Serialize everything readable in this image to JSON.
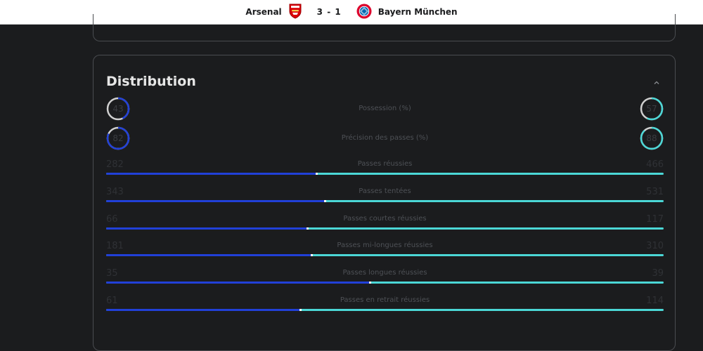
{
  "header": {
    "home_team": "Arsenal",
    "score": "3 - 1",
    "away_team": "Bayern München"
  },
  "section": {
    "title": "Distribution"
  },
  "colors": {
    "home": "#2140d8",
    "away": "#4bd7d6",
    "ring_track": "#cfcfcf"
  },
  "ring_stats": [
    {
      "label": "Possession (%)",
      "home": 43,
      "away": 57
    },
    {
      "label": "Précision des passes (%)",
      "home": 82,
      "away": 88
    }
  ],
  "bar_stats": [
    {
      "label": "Passes réussies",
      "home": 282,
      "away": 466
    },
    {
      "label": "Passes tentées",
      "home": 343,
      "away": 531
    },
    {
      "label": "Passes courtes réussies",
      "home": 66,
      "away": 117
    },
    {
      "label": "Passes mi-longues réussies",
      "home": 181,
      "away": 310
    },
    {
      "label": "Passes longues réussies",
      "home": 35,
      "away": 39
    },
    {
      "label": "Passes en retrait réussies",
      "home": 61,
      "away": 114
    }
  ]
}
